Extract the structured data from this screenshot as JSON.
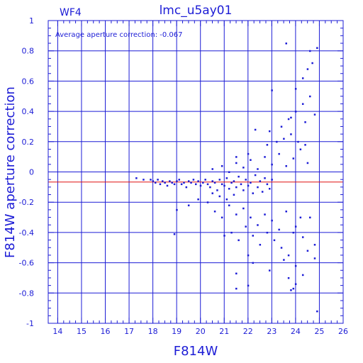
{
  "chart_data": {
    "type": "scatter",
    "title": "lmc_u5ay01",
    "chip_label": "WF4",
    "annotation": "Average aperture correction: -0.067",
    "xlabel": "F814W",
    "ylabel": "F814W aperture correction",
    "xlim": [
      13.6,
      26.0
    ],
    "ylim": [
      -1.0,
      1.0
    ],
    "x_ticks": [
      14,
      15,
      16,
      17,
      18,
      19,
      20,
      21,
      22,
      23,
      24,
      25,
      26
    ],
    "y_ticks": [
      -1,
      -0.8,
      -0.6,
      -0.4,
      -0.2,
      0,
      0.2,
      0.4,
      0.6,
      0.8,
      1
    ],
    "x_tick_labels": [
      "14",
      "15",
      "16",
      "17",
      "18",
      "19",
      "20",
      "21",
      "22",
      "23",
      "24",
      "25",
      "26"
    ],
    "y_tick_labels": [
      "-1",
      "-0.8",
      "-0.6",
      "-0.4",
      "-0.2",
      "0",
      "0.2",
      "0.4",
      "0.6",
      "0.8",
      "1"
    ],
    "grid": true,
    "reference_line_y": -0.067,
    "colors": {
      "axis": "#1c1cd6",
      "points": "#1c1cd6",
      "reference_line": "#e01010",
      "background": "#ffffff"
    },
    "points": [
      [
        17.3,
        -0.04
      ],
      [
        17.6,
        -0.05
      ],
      [
        17.9,
        -0.05
      ],
      [
        18.0,
        -0.06
      ],
      [
        18.1,
        -0.07
      ],
      [
        18.2,
        -0.05
      ],
      [
        18.3,
        -0.08
      ],
      [
        18.4,
        -0.06
      ],
      [
        18.5,
        -0.07
      ],
      [
        18.6,
        -0.09
      ],
      [
        18.7,
        -0.06
      ],
      [
        18.8,
        -0.07
      ],
      [
        18.9,
        -0.08
      ],
      [
        19.0,
        -0.06
      ],
      [
        19.1,
        -0.05
      ],
      [
        19.2,
        -0.08
      ],
      [
        19.3,
        -0.07
      ],
      [
        19.4,
        -0.1
      ],
      [
        19.5,
        -0.06
      ],
      [
        19.6,
        -0.07
      ],
      [
        19.7,
        -0.05
      ],
      [
        19.8,
        -0.08
      ],
      [
        19.9,
        -0.06
      ],
      [
        20.0,
        -0.09
      ],
      [
        20.1,
        -0.07
      ],
      [
        20.2,
        -0.05
      ],
      [
        20.3,
        -0.08
      ],
      [
        20.4,
        -0.1
      ],
      [
        20.5,
        -0.06
      ],
      [
        20.6,
        -0.07
      ],
      [
        20.7,
        -0.12
      ],
      [
        20.8,
        -0.05
      ],
      [
        20.9,
        -0.08
      ],
      [
        21.0,
        -0.09
      ],
      [
        21.1,
        -0.04
      ],
      [
        21.2,
        -0.11
      ],
      [
        21.3,
        -0.07
      ],
      [
        21.4,
        -0.06
      ],
      [
        21.5,
        -0.1
      ],
      [
        21.6,
        -0.03
      ],
      [
        21.7,
        -0.08
      ],
      [
        21.8,
        -0.12
      ],
      [
        21.9,
        -0.05
      ],
      [
        22.0,
        -0.09
      ],
      [
        22.1,
        -0.07
      ],
      [
        22.2,
        -0.14
      ],
      [
        22.3,
        -0.02
      ],
      [
        22.4,
        -0.1
      ],
      [
        22.5,
        -0.06
      ],
      [
        22.6,
        -0.13
      ],
      [
        22.7,
        -0.04
      ],
      [
        22.8,
        -0.08
      ],
      [
        22.9,
        -0.11
      ],
      [
        23.0,
        -0.05
      ],
      [
        19.0,
        -0.25
      ],
      [
        19.5,
        -0.22
      ],
      [
        19.9,
        -0.18
      ],
      [
        20.3,
        -0.2
      ],
      [
        20.6,
        -0.26
      ],
      [
        20.9,
        -0.3
      ],
      [
        21.2,
        -0.22
      ],
      [
        21.5,
        -0.28
      ],
      [
        21.8,
        -0.24
      ],
      [
        22.1,
        -0.3
      ],
      [
        22.4,
        -0.35
      ],
      [
        22.7,
        -0.28
      ],
      [
        23.0,
        -0.32
      ],
      [
        23.3,
        -0.38
      ],
      [
        23.6,
        -0.26
      ],
      [
        23.9,
        -0.4
      ],
      [
        24.2,
        -0.3
      ],
      [
        18.9,
        -0.41
      ],
      [
        20.5,
        -0.14
      ],
      [
        20.8,
        -0.16
      ],
      [
        21.1,
        -0.18
      ],
      [
        21.4,
        -0.15
      ],
      [
        21.0,
        -0.42
      ],
      [
        21.3,
        -0.4
      ],
      [
        21.6,
        -0.45
      ],
      [
        21.9,
        -0.36
      ],
      [
        22.2,
        -0.42
      ],
      [
        22.5,
        -0.48
      ],
      [
        22.8,
        -0.4
      ],
      [
        23.1,
        -0.45
      ],
      [
        23.4,
        -0.5
      ],
      [
        23.7,
        -0.55
      ],
      [
        24.0,
        -0.36
      ],
      [
        24.3,
        -0.43
      ],
      [
        24.6,
        -0.3
      ],
      [
        24.8,
        -0.48
      ],
      [
        20.5,
        0.02
      ],
      [
        20.9,
        0.04
      ],
      [
        21.2,
        0.0
      ],
      [
        21.5,
        0.06
      ],
      [
        21.8,
        0.03
      ],
      [
        22.1,
        0.08
      ],
      [
        22.4,
        0.02
      ],
      [
        22.7,
        0.1
      ],
      [
        23.0,
        0.05
      ],
      [
        23.3,
        0.12
      ],
      [
        23.6,
        0.04
      ],
      [
        23.9,
        0.09
      ],
      [
        24.2,
        0.15
      ],
      [
        24.5,
        0.06
      ],
      [
        21.5,
        0.1
      ],
      [
        22.0,
        0.12
      ],
      [
        22.8,
        0.18
      ],
      [
        23.2,
        0.2
      ],
      [
        23.5,
        0.22
      ],
      [
        23.8,
        0.25
      ],
      [
        24.1,
        0.2
      ],
      [
        24.4,
        0.18
      ],
      [
        22.3,
        0.28
      ],
      [
        22.9,
        0.27
      ],
      [
        23.4,
        0.3
      ],
      [
        23.7,
        0.35
      ],
      [
        24.0,
        0.4
      ],
      [
        24.3,
        0.45
      ],
      [
        24.6,
        0.5
      ],
      [
        24.8,
        0.38
      ],
      [
        23.8,
        0.36
      ],
      [
        24.4,
        0.33
      ],
      [
        23.0,
        0.54
      ],
      [
        24.0,
        0.55
      ],
      [
        24.3,
        0.62
      ],
      [
        24.5,
        0.68
      ],
      [
        24.7,
        0.72
      ],
      [
        24.6,
        0.8
      ],
      [
        23.6,
        0.85
      ],
      [
        24.9,
        0.82
      ],
      [
        22.0,
        -0.55
      ],
      [
        22.2,
        -0.6
      ],
      [
        22.9,
        -0.65
      ],
      [
        23.5,
        -0.58
      ],
      [
        24.0,
        -0.62
      ],
      [
        24.5,
        -0.52
      ],
      [
        24.8,
        -0.57
      ],
      [
        21.5,
        -0.67
      ],
      [
        23.7,
        -0.7
      ],
      [
        24.0,
        -0.74
      ],
      [
        24.3,
        -0.68
      ],
      [
        23.9,
        -0.77
      ],
      [
        21.5,
        -0.77
      ],
      [
        22.0,
        -0.75
      ],
      [
        23.8,
        -0.78
      ],
      [
        24.9,
        -0.92
      ]
    ]
  }
}
